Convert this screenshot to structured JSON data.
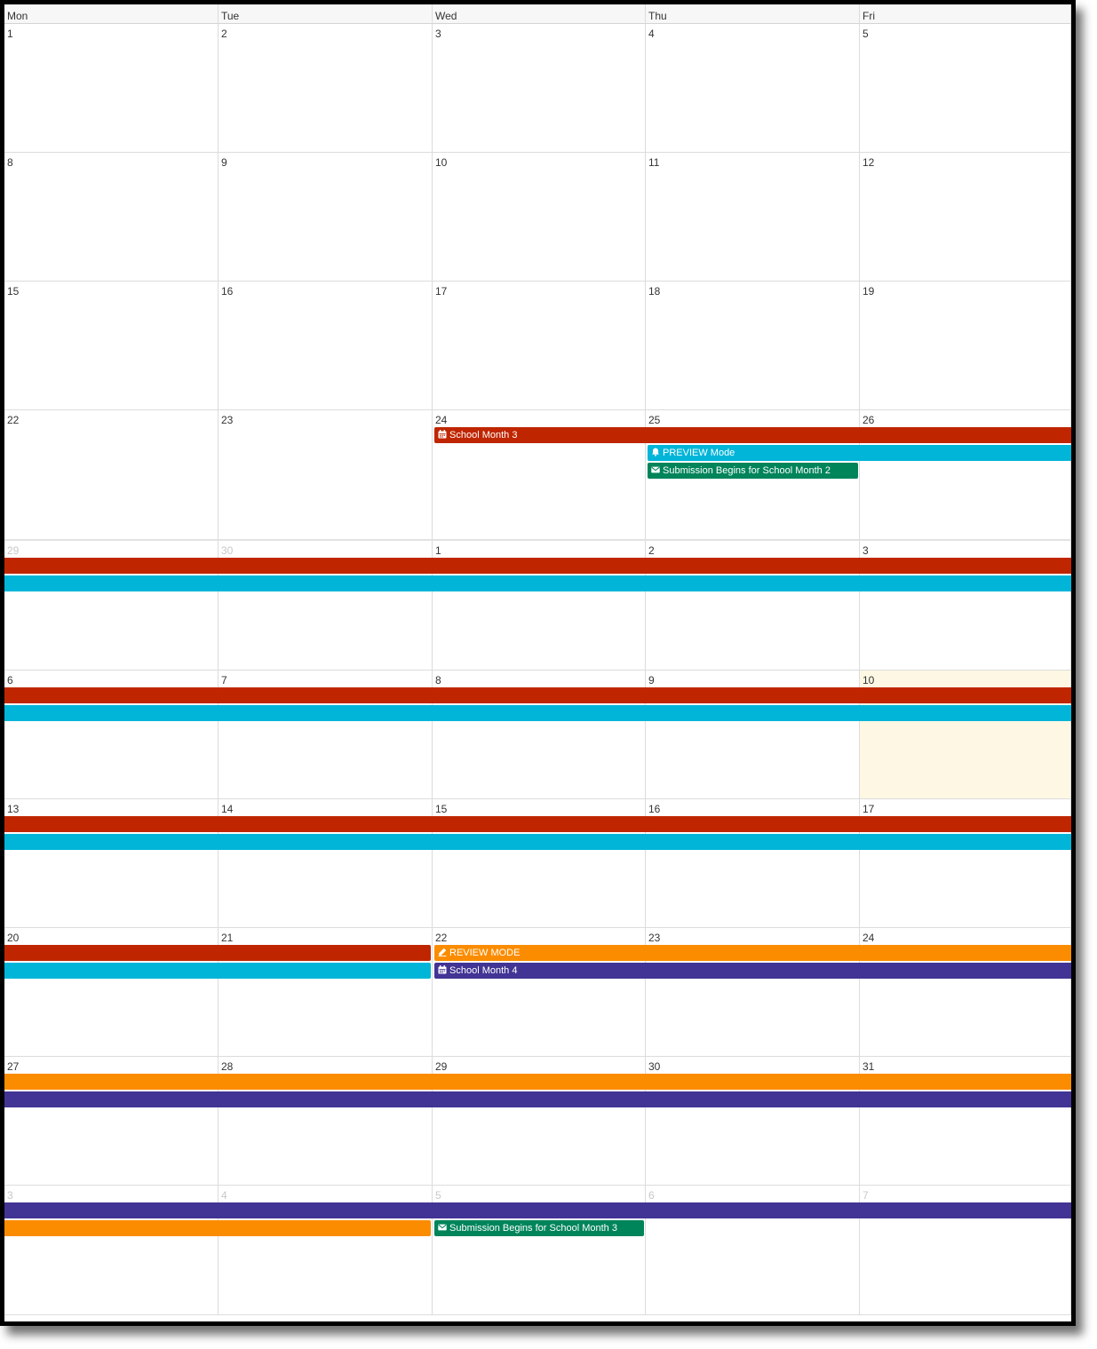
{
  "weekdays": [
    "Mon",
    "Tue",
    "Wed",
    "Thu",
    "Fri"
  ],
  "weeks": [
    [
      {
        "d": "1"
      },
      {
        "d": "2"
      },
      {
        "d": "3"
      },
      {
        "d": "4"
      },
      {
        "d": "5"
      }
    ],
    [
      {
        "d": "8"
      },
      {
        "d": "9"
      },
      {
        "d": "10"
      },
      {
        "d": "11"
      },
      {
        "d": "12"
      }
    ],
    [
      {
        "d": "15"
      },
      {
        "d": "16"
      },
      {
        "d": "17"
      },
      {
        "d": "18"
      },
      {
        "d": "19"
      }
    ],
    [
      {
        "d": "22"
      },
      {
        "d": "23"
      },
      {
        "d": "24"
      },
      {
        "d": "25"
      },
      {
        "d": "26"
      }
    ],
    [
      {
        "d": "29",
        "other": true
      },
      {
        "d": "30",
        "other": true
      },
      {
        "d": "1"
      },
      {
        "d": "2"
      },
      {
        "d": "3"
      }
    ],
    [
      {
        "d": "6"
      },
      {
        "d": "7"
      },
      {
        "d": "8"
      },
      {
        "d": "9"
      },
      {
        "d": "10",
        "today": true
      }
    ],
    [
      {
        "d": "13"
      },
      {
        "d": "14"
      },
      {
        "d": "15"
      },
      {
        "d": "16"
      },
      {
        "d": "17"
      }
    ],
    [
      {
        "d": "20"
      },
      {
        "d": "21"
      },
      {
        "d": "22"
      },
      {
        "d": "23"
      },
      {
        "d": "24"
      }
    ],
    [
      {
        "d": "27"
      },
      {
        "d": "28"
      },
      {
        "d": "29"
      },
      {
        "d": "30"
      },
      {
        "d": "31"
      }
    ],
    [
      {
        "d": "3",
        "other": true
      },
      {
        "d": "4",
        "other": true
      },
      {
        "d": "5",
        "other": true
      },
      {
        "d": "6",
        "other": true
      },
      {
        "d": "7",
        "other": true
      }
    ]
  ],
  "colors": {
    "school_month": "#bf2600",
    "preview": "#00b5d8",
    "submission": "#00845a",
    "review": "#fb8c00",
    "school_month_4": "#413494"
  },
  "events": [
    {
      "name": "event-school-month-3",
      "week": 3,
      "start": 2,
      "end": 4,
      "slot": 0,
      "label": "School Month 3",
      "icon": "calendar-icon",
      "color": "school_month",
      "starts": true,
      "ends": false
    },
    {
      "name": "event-preview-mode",
      "week": 3,
      "start": 3,
      "end": 4,
      "slot": 1,
      "label": "PREVIEW Mode",
      "icon": "bell-icon",
      "color": "preview",
      "starts": true,
      "ends": false
    },
    {
      "name": "event-submission-school-month-2",
      "week": 3,
      "start": 3,
      "end": 3,
      "slot": 2,
      "label": "Submission Begins for School Month 2",
      "icon": "envelope-icon",
      "color": "submission",
      "starts": true,
      "ends": true
    },
    {
      "name": "event-school-month-3-cont",
      "week": 4,
      "start": 0,
      "end": 4,
      "slot": 0,
      "label": "",
      "color": "school_month",
      "starts": false,
      "ends": false
    },
    {
      "name": "event-preview-mode-cont",
      "week": 4,
      "start": 0,
      "end": 4,
      "slot": 1,
      "label": "",
      "color": "preview",
      "starts": false,
      "ends": false
    },
    {
      "name": "event-school-month-3-cont",
      "week": 5,
      "start": 0,
      "end": 4,
      "slot": 0,
      "label": "",
      "color": "school_month",
      "starts": false,
      "ends": false
    },
    {
      "name": "event-preview-mode-cont",
      "week": 5,
      "start": 0,
      "end": 4,
      "slot": 1,
      "label": "",
      "color": "preview",
      "starts": false,
      "ends": false
    },
    {
      "name": "event-school-month-3-cont",
      "week": 6,
      "start": 0,
      "end": 4,
      "slot": 0,
      "label": "",
      "color": "school_month",
      "starts": false,
      "ends": false
    },
    {
      "name": "event-preview-mode-cont",
      "week": 6,
      "start": 0,
      "end": 4,
      "slot": 1,
      "label": "",
      "color": "preview",
      "starts": false,
      "ends": false
    },
    {
      "name": "event-school-month-3-cont",
      "week": 7,
      "start": 0,
      "end": 1,
      "slot": 0,
      "label": "",
      "color": "school_month",
      "starts": false,
      "ends": true
    },
    {
      "name": "event-preview-mode-cont",
      "week": 7,
      "start": 0,
      "end": 1,
      "slot": 1,
      "label": "",
      "color": "preview",
      "starts": false,
      "ends": true
    },
    {
      "name": "event-review-mode",
      "week": 7,
      "start": 2,
      "end": 4,
      "slot": 0,
      "label": "REVIEW MODE",
      "icon": "pencil-icon",
      "color": "review",
      "starts": true,
      "ends": false
    },
    {
      "name": "event-school-month-4",
      "week": 7,
      "start": 2,
      "end": 4,
      "slot": 1,
      "label": "School Month 4",
      "icon": "calendar-icon",
      "color": "school_month_4",
      "starts": true,
      "ends": false
    },
    {
      "name": "event-review-mode-cont",
      "week": 8,
      "start": 0,
      "end": 4,
      "slot": 0,
      "label": "",
      "color": "review",
      "starts": false,
      "ends": false
    },
    {
      "name": "event-school-month-4-cont",
      "week": 8,
      "start": 0,
      "end": 4,
      "slot": 1,
      "label": "",
      "color": "school_month_4",
      "starts": false,
      "ends": false
    },
    {
      "name": "event-school-month-4-cont",
      "week": 9,
      "start": 0,
      "end": 4,
      "slot": 0,
      "label": "",
      "color": "school_month_4",
      "starts": false,
      "ends": false
    },
    {
      "name": "event-review-mode-cont",
      "week": 9,
      "start": 0,
      "end": 1,
      "slot": 1,
      "label": "",
      "color": "review",
      "starts": false,
      "ends": true
    },
    {
      "name": "event-submission-school-month-3",
      "week": 9,
      "start": 2,
      "end": 2,
      "slot": 1,
      "label": "Submission Begins for School Month 3",
      "icon": "envelope-icon",
      "color": "submission",
      "starts": true,
      "ends": true
    }
  ]
}
